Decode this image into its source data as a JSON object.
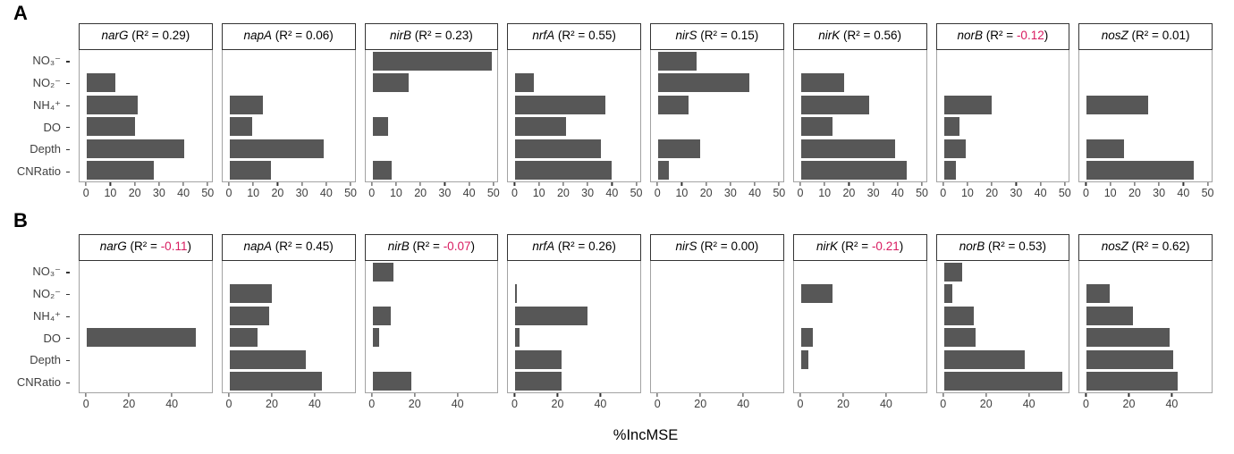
{
  "figure": {
    "colors": {
      "bar": "#575757",
      "negative_r2": "#d81b60",
      "strip_border": "#333333",
      "panel_border": "#a3a3a3",
      "axis_text": "#404040",
      "title_text": "#000000"
    }
  },
  "chart_data": {
    "type": "bar",
    "orientation": "horizontal",
    "xlabel": "%IncMSE",
    "strip_prefix": " (R² = ",
    "strip_suffix": ")",
    "categories": [
      "NO₃⁻",
      "NO₂⁻",
      "NH₄⁺",
      "DO",
      "Depth",
      "CNRatio"
    ],
    "category_keys": [
      "NO3",
      "NO2",
      "NH4",
      "DO",
      "Depth",
      "CNRatio"
    ],
    "rows": [
      {
        "label": "A",
        "axis_ticks": [
          0,
          10,
          20,
          30,
          40,
          50
        ],
        "axis_max": 52,
        "panels": [
          {
            "gene": "narG",
            "r2": "0.29",
            "r2_negative": false,
            "values": [
              0,
              12,
              21,
              20,
              40.5,
              28
            ]
          },
          {
            "gene": "napA",
            "r2": "0.06",
            "r2_negative": false,
            "values": [
              0,
              0,
              14,
              9.5,
              39,
              17
            ]
          },
          {
            "gene": "nirB",
            "r2": "0.23",
            "r2_negative": false,
            "values": [
              49.5,
              15,
              0,
              6.5,
              0,
              8
            ]
          },
          {
            "gene": "nrfA",
            "r2": "0.55",
            "r2_negative": false,
            "values": [
              0,
              7.5,
              37.5,
              21,
              35.5,
              40
            ]
          },
          {
            "gene": "nirS",
            "r2": "0.15",
            "r2_negative": false,
            "values": [
              16,
              38,
              12.5,
              0,
              17.5,
              4.5
            ]
          },
          {
            "gene": "nirK",
            "r2": "0.56",
            "r2_negative": false,
            "values": [
              0,
              18,
              28.5,
              13,
              39,
              44
            ]
          },
          {
            "gene": "norB",
            "r2": "-0.12",
            "r2_negative": true,
            "values": [
              0,
              0,
              20,
              6.5,
              9,
              5
            ]
          },
          {
            "gene": "nosZ",
            "r2": "0.01",
            "r2_negative": false,
            "values": [
              0,
              0,
              25.5,
              0,
              15.5,
              44.5
            ]
          }
        ]
      },
      {
        "label": "B",
        "axis_ticks": [
          0,
          20,
          40
        ],
        "axis_max": 59,
        "panels": [
          {
            "gene": "narG",
            "r2": "-0.11",
            "r2_negative": true,
            "values": [
              0,
              0,
              0,
              51.5,
              0,
              0
            ]
          },
          {
            "gene": "napA",
            "r2": "0.45",
            "r2_negative": false,
            "values": [
              0,
              20,
              18.5,
              13,
              36,
              43.5
            ]
          },
          {
            "gene": "nirB",
            "r2": "-0.07",
            "r2_negative": true,
            "values": [
              10,
              0,
              8.5,
              3,
              0,
              18.5
            ]
          },
          {
            "gene": "nrfA",
            "r2": "0.26",
            "r2_negative": false,
            "values": [
              0,
              0.8,
              34,
              1.8,
              22,
              22
            ]
          },
          {
            "gene": "nirS",
            "r2": "0.00",
            "r2_negative": false,
            "values": [
              0,
              0,
              0,
              0,
              0,
              0
            ]
          },
          {
            "gene": "nirK",
            "r2": "-0.21",
            "r2_negative": true,
            "values": [
              0,
              15,
              0,
              5.5,
              3.5,
              0
            ]
          },
          {
            "gene": "norB",
            "r2": "0.53",
            "r2_negative": false,
            "values": [
              8.5,
              3.8,
              14,
              15,
              38,
              56
            ]
          },
          {
            "gene": "nosZ",
            "r2": "0.62",
            "r2_negative": false,
            "values": [
              0,
              11,
              22,
              39,
              41,
              43
            ]
          }
        ]
      }
    ]
  }
}
